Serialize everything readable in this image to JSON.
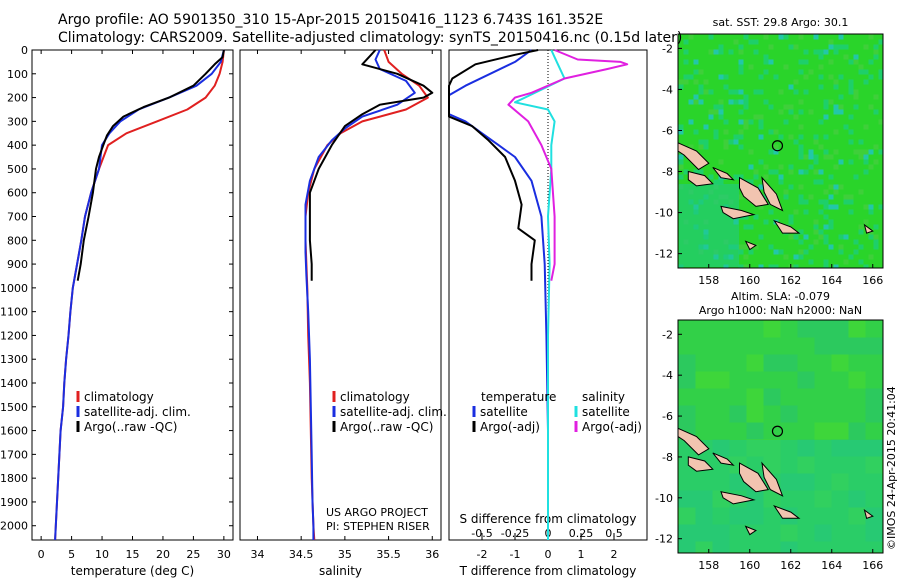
{
  "header": {
    "line1": "Argo profile: AO 5901350_310 15-Apr-2015 20150416_1123 6.743S 161.352E",
    "line2": "Climatology: CARS2009. Satellite-adjusted climatology: synTS_20150416.nc (0.15d later)"
  },
  "sst_map": {
    "title": "sat. SST: 29.8 Argo: 30.1",
    "xticks": [
      "158",
      "160",
      "162",
      "164",
      "166"
    ],
    "yticks": [
      "-2",
      "-4",
      "-6",
      "-8",
      "-10",
      "-12"
    ],
    "xlim": [
      156.5,
      166.5
    ],
    "ylim": [
      -12.7,
      -1.3
    ],
    "argo_lon": 161.352,
    "argo_lat": -6.743,
    "colors": {
      "background": "#22dd22",
      "islands": "#f2c4b0"
    }
  },
  "sla_map": {
    "title_line1": "Altim. SLA: -0.079",
    "title_line2": "Argo h1000: NaN h2000: NaN",
    "xticks": [
      "158",
      "160",
      "162",
      "164",
      "166"
    ],
    "yticks": [
      "-2",
      "-4",
      "-6",
      "-8",
      "-10",
      "-12"
    ],
    "xlim": [
      156.5,
      166.5
    ],
    "ylim": [
      -12.7,
      -1.3
    ],
    "argo_lon": 161.352,
    "argo_lat": -6.743,
    "colors": {
      "background": "#30d24a",
      "islands": "#f2c4b0"
    }
  },
  "credit": "©IMOS 24-Apr-2015 20:41:04",
  "chart_data": [
    {
      "type": "line",
      "name": "temperature profile",
      "xlabel": "temperature (deg C)",
      "ylabel": "",
      "xlim": [
        -1.5,
        31.5
      ],
      "ylim": [
        2060,
        0
      ],
      "xticks": [
        0,
        5,
        10,
        15,
        20,
        25,
        30
      ],
      "yticks": [
        0,
        100,
        200,
        300,
        400,
        500,
        600,
        700,
        800,
        900,
        1000,
        1100,
        1200,
        1300,
        1400,
        1500,
        1600,
        1700,
        1800,
        1900,
        2000
      ],
      "legend": [
        "climatology",
        "satellite-adj. clim.",
        "Argo(..raw -QC)"
      ],
      "series": [
        {
          "name": "climatology",
          "color": "#e02020",
          "points": [
            [
              30,
              0
            ],
            [
              29.8,
              50
            ],
            [
              29.3,
              100
            ],
            [
              28.5,
              150
            ],
            [
              27,
              200
            ],
            [
              24,
              250
            ],
            [
              19,
              300
            ],
            [
              14,
              350
            ],
            [
              11,
              400
            ],
            [
              9.5,
              500
            ],
            [
              8.2,
              600
            ],
            [
              7.2,
              700
            ],
            [
              6.6,
              800
            ],
            [
              5.9,
              900
            ],
            [
              5.2,
              1000
            ],
            [
              4.8,
              1100
            ],
            [
              4.5,
              1200
            ],
            [
              4.1,
              1300
            ],
            [
              3.8,
              1400
            ],
            [
              3.6,
              1500
            ],
            [
              3.2,
              1600
            ],
            [
              3,
              1700
            ],
            [
              2.8,
              1800
            ],
            [
              2.6,
              1900
            ],
            [
              2.4,
              2000
            ],
            [
              2.3,
              2060
            ]
          ]
        },
        {
          "name": "satellite-adj. clim.",
          "color": "#1a2ee0",
          "points": [
            [
              30,
              0
            ],
            [
              29.5,
              50
            ],
            [
              28,
              100
            ],
            [
              25.5,
              150
            ],
            [
              21,
              200
            ],
            [
              16,
              250
            ],
            [
              13,
              300
            ],
            [
              11.2,
              350
            ],
            [
              10,
              400
            ],
            [
              9.5,
              500
            ],
            [
              8.2,
              600
            ],
            [
              7.2,
              700
            ],
            [
              6.6,
              800
            ],
            [
              5.9,
              900
            ],
            [
              5.2,
              1000
            ],
            [
              4.8,
              1100
            ],
            [
              4.5,
              1200
            ],
            [
              4.1,
              1300
            ],
            [
              3.8,
              1400
            ],
            [
              3.6,
              1500
            ],
            [
              3.2,
              1600
            ],
            [
              3,
              1700
            ],
            [
              2.8,
              1800
            ],
            [
              2.6,
              1900
            ],
            [
              2.4,
              2000
            ],
            [
              2.3,
              2060
            ]
          ]
        },
        {
          "name": "Argo(..raw -QC)",
          "color": "#000000",
          "points": [
            [
              30,
              0
            ],
            [
              29.8,
              30
            ],
            [
              28.5,
              60
            ],
            [
              27,
              100
            ],
            [
              25,
              150
            ],
            [
              21,
              200
            ],
            [
              16.8,
              240
            ],
            [
              13.5,
              280
            ],
            [
              11.8,
              320
            ],
            [
              10.8,
              360
            ],
            [
              10.2,
              400
            ],
            [
              9.5,
              450
            ],
            [
              9,
              500
            ],
            [
              8.5,
              600
            ],
            [
              7.8,
              700
            ],
            [
              7,
              800
            ],
            [
              6.5,
              900
            ],
            [
              6,
              970
            ]
          ]
        }
      ]
    },
    {
      "type": "line",
      "name": "salinity profile",
      "xlabel": "salinity",
      "ylabel": "",
      "xlim": [
        33.8,
        36.1
      ],
      "ylim": [
        2060,
        0
      ],
      "xticks": [
        34,
        34.5,
        35,
        35.5,
        36
      ],
      "tick_labels": [
        "34",
        "34.5",
        "35",
        "35.5",
        "36"
      ],
      "legend": [
        "climatology",
        "satellite-adj. clim.",
        "Argo(..raw -QC)"
      ],
      "annotation": [
        "US ARGO PROJECT",
        "PI: STEPHEN RISER"
      ],
      "series": [
        {
          "name": "climatology",
          "color": "#e02020",
          "points": [
            [
              35.45,
              0
            ],
            [
              35.5,
              50
            ],
            [
              35.65,
              100
            ],
            [
              35.85,
              150
            ],
            [
              35.95,
              200
            ],
            [
              35.7,
              250
            ],
            [
              35.2,
              300
            ],
            [
              34.95,
              350
            ],
            [
              34.8,
              400
            ],
            [
              34.65,
              500
            ],
            [
              34.58,
              600
            ],
            [
              34.55,
              700
            ],
            [
              34.55,
              800
            ],
            [
              34.56,
              900
            ],
            [
              34.57,
              1000
            ],
            [
              34.58,
              1200
            ],
            [
              34.6,
              1400
            ],
            [
              34.61,
              1600
            ],
            [
              34.62,
              1800
            ],
            [
              34.64,
              2000
            ],
            [
              34.65,
              2060
            ]
          ]
        },
        {
          "name": "satellite-adj. clim.",
          "color": "#1a2ee0",
          "points": [
            [
              35.4,
              0
            ],
            [
              35.35,
              40
            ],
            [
              35.4,
              80
            ],
            [
              35.7,
              130
            ],
            [
              35.8,
              180
            ],
            [
              35.6,
              230
            ],
            [
              35.2,
              280
            ],
            [
              35,
              330
            ],
            [
              34.85,
              380
            ],
            [
              34.7,
              450
            ],
            [
              34.6,
              550
            ],
            [
              34.55,
              650
            ],
            [
              34.55,
              750
            ],
            [
              34.55,
              850
            ],
            [
              34.56,
              950
            ],
            [
              34.58,
              1100
            ],
            [
              34.6,
              1300
            ],
            [
              34.61,
              1500
            ],
            [
              34.62,
              1700
            ],
            [
              34.63,
              1900
            ],
            [
              34.64,
              2000
            ],
            [
              34.64,
              2060
            ]
          ]
        },
        {
          "name": "Argo(..raw -QC)",
          "color": "#000000",
          "points": [
            [
              35.35,
              0
            ],
            [
              35.3,
              20
            ],
            [
              35.2,
              60
            ],
            [
              35.6,
              100
            ],
            [
              35.9,
              150
            ],
            [
              36,
              180
            ],
            [
              35.9,
              200
            ],
            [
              35.4,
              230
            ],
            [
              35.2,
              270
            ],
            [
              35,
              320
            ],
            [
              34.85,
              400
            ],
            [
              34.7,
              500
            ],
            [
              34.6,
              600
            ],
            [
              34.6,
              700
            ],
            [
              34.6,
              800
            ],
            [
              34.62,
              900
            ],
            [
              34.62,
              970
            ]
          ]
        }
      ]
    },
    {
      "type": "line",
      "name": "difference from climatology",
      "xlabel": "T difference from climatology",
      "xlabel_top": "S difference from climatology",
      "ylabel": "",
      "xlim": [
        -3.0,
        3.0
      ],
      "ylim": [
        2060,
        0
      ],
      "xticks_T": [
        -2,
        -1,
        0,
        1,
        2
      ],
      "xticks_S": [
        -0.5,
        -0.25,
        0,
        0.25,
        0.5
      ],
      "s_tick_labels": [
        "-0.5",
        "-0.25",
        "0",
        "0.25",
        "0.5"
      ],
      "s_scale": 4,
      "legend_temperature_title": "temperature",
      "legend_salinity_title": "salinity",
      "legend": [
        "satellite",
        "Argo(-adj)",
        "satellite",
        "Argo(-adj)"
      ],
      "series": [
        {
          "name": "satellite",
          "group": "temperature",
          "color": "#1a2ee0",
          "points": [
            [
              -0.5,
              0
            ],
            [
              -1,
              50
            ],
            [
              -2.5,
              150
            ],
            [
              -3,
              190
            ],
            [
              -3,
              200
            ],
            [
              -3,
              270
            ],
            [
              -2.5,
              300
            ],
            [
              -2,
              350
            ],
            [
              -1.5,
              400
            ],
            [
              -1,
              450
            ],
            [
              -0.5,
              550
            ],
            [
              -0.2,
              700
            ],
            [
              -0.1,
              900
            ],
            [
              -0.05,
              1200
            ],
            [
              0,
              1600
            ],
            [
              0,
              2060
            ]
          ]
        },
        {
          "name": "Argo(-adj)",
          "group": "temperature",
          "color": "#000000",
          "points": [
            [
              -0.3,
              0
            ],
            [
              -1,
              20
            ],
            [
              -2.2,
              60
            ],
            [
              -2.9,
              120
            ],
            [
              -3,
              150
            ],
            [
              -3,
              190
            ],
            [
              -3,
              280
            ],
            [
              -2.3,
              320
            ],
            [
              -1.8,
              380
            ],
            [
              -1.3,
              450
            ],
            [
              -1,
              550
            ],
            [
              -0.8,
              650
            ],
            [
              -0.9,
              750
            ],
            [
              -0.4,
              800
            ],
            [
              -0.5,
              900
            ],
            [
              -0.5,
              970
            ]
          ]
        },
        {
          "name": "satellite",
          "group": "salinity",
          "color": "#20e0e0",
          "points": [
            [
              0.1,
              0
            ],
            [
              0.3,
              60
            ],
            [
              0.5,
              120
            ],
            [
              -0.7,
              200
            ],
            [
              -1,
              220
            ],
            [
              0,
              250
            ],
            [
              0.2,
              300
            ],
            [
              0.1,
              400
            ],
            [
              0.1,
              500
            ],
            [
              0,
              700
            ],
            [
              0.05,
              900
            ],
            [
              0,
              1200
            ],
            [
              0,
              1600
            ],
            [
              0,
              2060
            ]
          ]
        },
        {
          "name": "Argo(-adj)",
          "group": "salinity",
          "color": "#e020e0",
          "points": [
            [
              0.2,
              0
            ],
            [
              0.9,
              40
            ],
            [
              2.2,
              50
            ],
            [
              2.4,
              60
            ],
            [
              1.8,
              80
            ],
            [
              0.5,
              120
            ],
            [
              -0.5,
              180
            ],
            [
              -1,
              200
            ],
            [
              -1.2,
              230
            ],
            [
              -0.6,
              300
            ],
            [
              -0.2,
              400
            ],
            [
              0.1,
              500
            ],
            [
              0.2,
              700
            ],
            [
              0.2,
              900
            ],
            [
              0.1,
              970
            ]
          ]
        }
      ]
    }
  ]
}
